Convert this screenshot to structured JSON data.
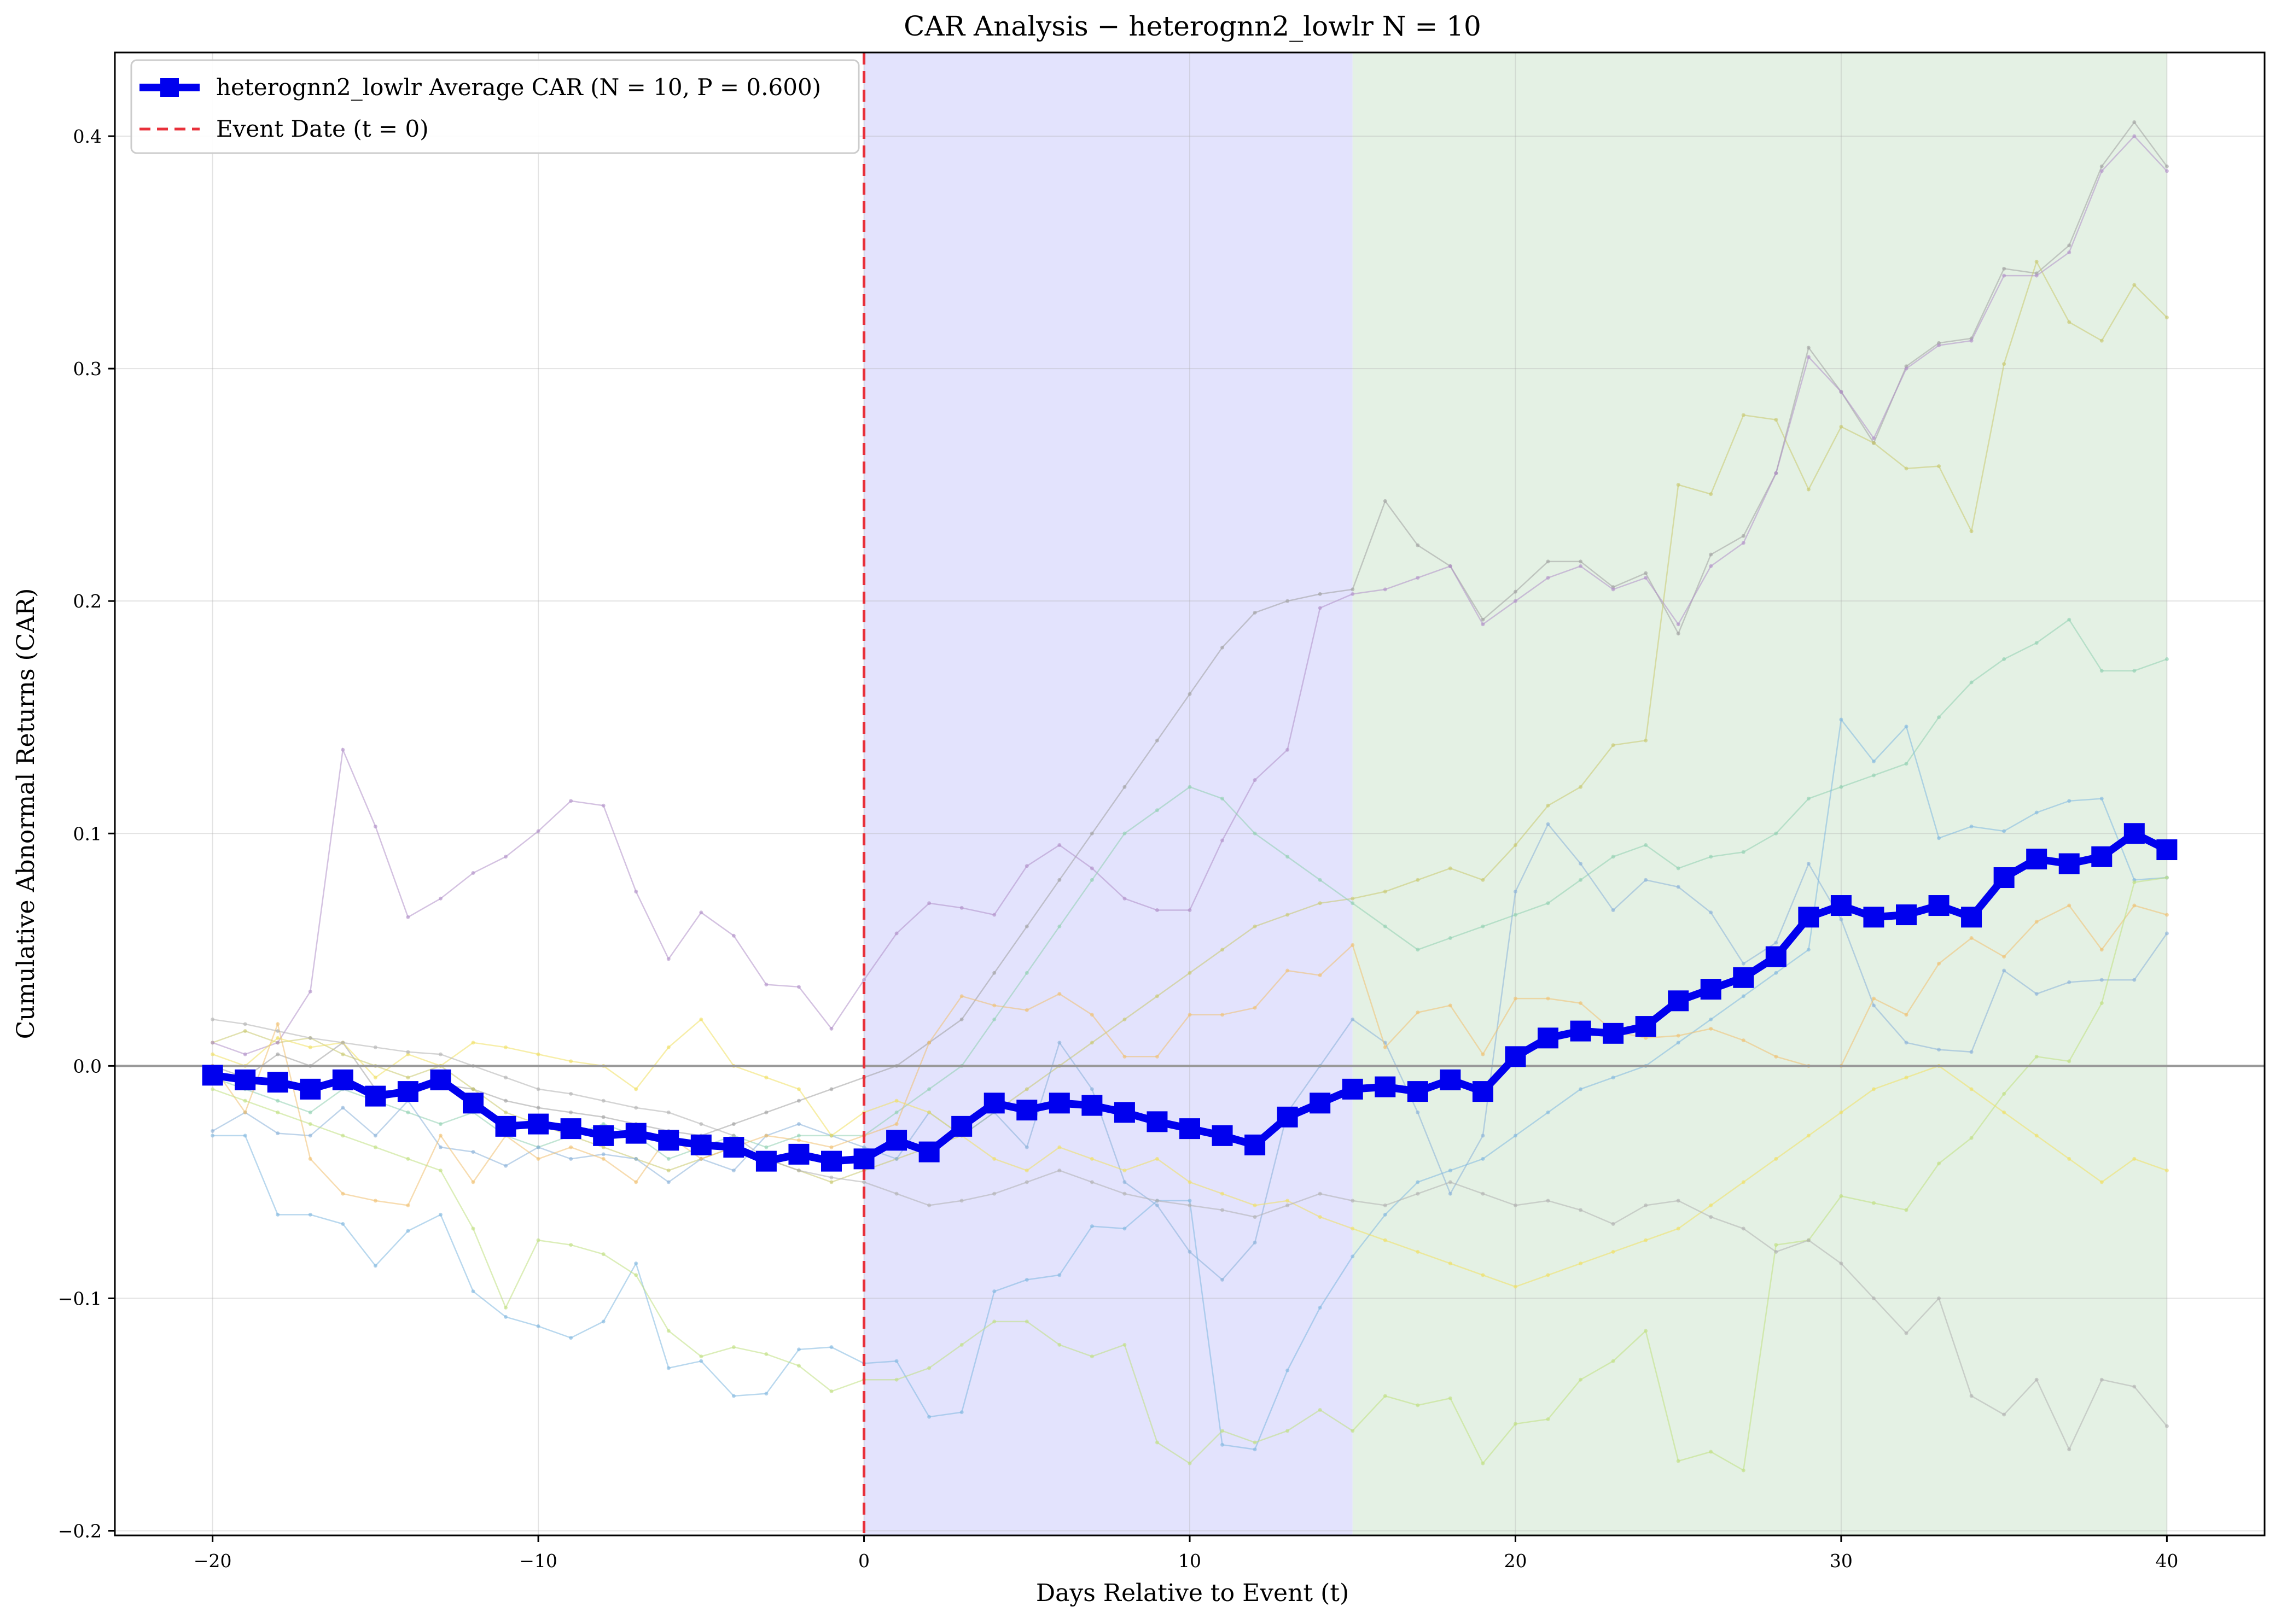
{
  "chart_data": {
    "type": "line",
    "title": "CAR Analysis − heterognn2_lowlr    N = 10",
    "xlabel": "Days Relative to Event (t)",
    "ylabel": "Cumulative Abnormal Returns (CAR)",
    "xlim": [
      -23,
      43
    ],
    "ylim": [
      -0.202,
      0.436
    ],
    "xticks": [
      -20,
      -10,
      0,
      10,
      20,
      30,
      40
    ],
    "xtick_labels": [
      "−20",
      "−10",
      "0",
      "10",
      "20",
      "30",
      "40"
    ],
    "yticks": [
      -0.2,
      -0.1,
      0.0,
      0.1,
      0.2,
      0.3,
      0.4
    ],
    "ytick_labels": [
      "−0.2",
      "−0.1",
      "0.0",
      "0.1",
      "0.2",
      "0.3",
      "0.4"
    ],
    "grid": true,
    "legend_position": "top-left",
    "shaded_regions": [
      {
        "x_start": 0,
        "x_end": 15,
        "color": "#e3e3fd"
      },
      {
        "x_start": 15,
        "x_end": 40,
        "color": "#e4f1e4"
      }
    ],
    "event_line": {
      "x": 0,
      "color": "#e8303a",
      "label": "Event Date    (t = 0)"
    },
    "zero_line": {
      "y": 0.0,
      "color": "#999999"
    },
    "colors": {
      "average": "#0000ee",
      "event": "#e8303a"
    },
    "x": [
      -20,
      -19,
      -18,
      -17,
      -16,
      -15,
      -14,
      -13,
      -12,
      -11,
      -10,
      -9,
      -8,
      -7,
      -6,
      -5,
      -4,
      -3,
      -2,
      -1,
      0,
      1,
      2,
      3,
      4,
      5,
      6,
      7,
      8,
      9,
      10,
      11,
      12,
      13,
      14,
      15,
      16,
      17,
      18,
      19,
      20,
      21,
      22,
      23,
      24,
      25,
      26,
      27,
      28,
      29,
      30,
      31,
      32,
      33,
      34,
      35,
      36,
      37,
      38,
      39,
      40
    ],
    "average_series": {
      "name": "heterognn2_lowlr Average CAR    (N = 10, P = 0.600)",
      "color": "#0000ee",
      "values": [
        -0.004,
        -0.006,
        -0.007,
        -0.01,
        -0.006,
        -0.013,
        -0.011,
        -0.006,
        -0.016,
        -0.026,
        -0.025,
        -0.027,
        -0.03,
        -0.029,
        -0.032,
        -0.034,
        -0.035,
        -0.041,
        -0.038,
        -0.041,
        -0.04,
        -0.032,
        -0.037,
        -0.026,
        -0.016,
        -0.019,
        -0.016,
        -0.017,
        -0.02,
        -0.024,
        -0.027,
        -0.03,
        -0.034,
        -0.022,
        -0.016,
        -0.01,
        -0.009,
        -0.011,
        -0.006,
        -0.011,
        0.004,
        0.012,
        0.015,
        0.014,
        0.017,
        0.028,
        0.033,
        0.038,
        0.047,
        0.064,
        0.069,
        0.064,
        0.065,
        0.069,
        0.064,
        0.081,
        0.089,
        0.087,
        0.09,
        0.1,
        0.093
      ]
    },
    "stock_series": [
      {
        "color": "#a0a0a0",
        "values": [
          0.0,
          -0.005,
          0.005,
          0.0,
          0.01,
          -0.01,
          -0.012,
          -0.008,
          -0.01,
          -0.015,
          -0.018,
          -0.02,
          -0.022,
          -0.025,
          -0.028,
          -0.03,
          -0.025,
          -0.02,
          -0.015,
          -0.01,
          -0.005,
          0.0,
          0.01,
          0.02,
          0.04,
          0.06,
          0.08,
          0.1,
          0.12,
          0.14,
          0.16,
          0.18,
          0.195,
          0.2,
          0.203,
          0.205,
          0.243,
          0.224,
          0.215,
          0.192,
          0.204,
          0.217,
          0.217,
          0.206,
          0.212,
          0.186,
          0.22,
          0.228,
          0.255,
          0.309,
          0.29,
          0.268,
          0.301,
          0.311,
          0.313,
          0.343,
          0.341,
          0.353,
          0.387,
          0.406,
          0.387
        ]
      },
      {
        "color": "#c8c86e",
        "values": [
          0.01,
          0.015,
          0.01,
          0.012,
          0.005,
          0.0,
          -0.005,
          0.0,
          -0.01,
          -0.02,
          -0.025,
          -0.03,
          -0.035,
          -0.04,
          -0.045,
          -0.04,
          -0.035,
          -0.04,
          -0.045,
          -0.05,
          -0.045,
          -0.04,
          -0.035,
          -0.03,
          -0.02,
          -0.01,
          0.0,
          0.01,
          0.02,
          0.03,
          0.04,
          0.05,
          0.06,
          0.065,
          0.07,
          0.072,
          0.075,
          0.08,
          0.085,
          0.08,
          0.095,
          0.112,
          0.12,
          0.138,
          0.14,
          0.25,
          0.246,
          0.28,
          0.278,
          0.248,
          0.275,
          0.268,
          0.257,
          0.258,
          0.23,
          0.302,
          0.346,
          0.32,
          0.312,
          0.336,
          0.322
        ]
      },
      {
        "color": "#b090c8",
        "values": [
          0.01,
          0.005,
          0.01,
          0.032,
          0.136,
          0.103,
          0.064,
          0.072,
          0.083,
          0.09,
          0.101,
          0.114,
          0.112,
          0.075,
          0.046,
          0.066,
          0.056,
          0.035,
          0.034,
          0.016,
          0.037,
          0.057,
          0.07,
          0.068,
          0.065,
          0.086,
          0.095,
          0.085,
          0.072,
          0.067,
          0.067,
          0.097,
          0.123,
          0.136,
          0.197,
          0.203,
          0.205,
          0.21,
          0.215,
          0.19,
          0.2,
          0.21,
          0.215,
          0.205,
          0.21,
          0.19,
          0.215,
          0.225,
          0.255,
          0.305,
          0.29,
          0.27,
          0.3,
          0.31,
          0.312,
          0.34,
          0.34,
          0.35,
          0.385,
          0.4,
          0.385
        ]
      },
      {
        "color": "#90d0b0",
        "values": [
          -0.005,
          -0.01,
          -0.015,
          -0.02,
          -0.01,
          -0.015,
          -0.02,
          -0.025,
          -0.02,
          -0.03,
          -0.035,
          -0.03,
          -0.025,
          -0.03,
          -0.04,
          -0.035,
          -0.03,
          -0.035,
          -0.03,
          -0.03,
          -0.03,
          -0.02,
          -0.01,
          0.0,
          0.02,
          0.04,
          0.06,
          0.08,
          0.1,
          0.11,
          0.12,
          0.115,
          0.1,
          0.09,
          0.08,
          0.07,
          0.06,
          0.05,
          0.055,
          0.06,
          0.065,
          0.07,
          0.08,
          0.09,
          0.095,
          0.085,
          0.09,
          0.092,
          0.1,
          0.115,
          0.12,
          0.125,
          0.13,
          0.15,
          0.165,
          0.175,
          0.182,
          0.192,
          0.17,
          0.17,
          0.175
        ]
      },
      {
        "color": "#88b0d8",
        "values": [
          -0.028,
          -0.02,
          -0.029,
          -0.03,
          -0.018,
          -0.03,
          -0.015,
          -0.035,
          -0.037,
          -0.043,
          -0.035,
          -0.04,
          -0.038,
          -0.04,
          -0.05,
          -0.04,
          -0.045,
          -0.03,
          -0.025,
          -0.03,
          -0.035,
          -0.04,
          -0.02,
          -0.03,
          -0.02,
          -0.035,
          0.01,
          -0.01,
          -0.05,
          -0.06,
          -0.08,
          -0.092,
          -0.076,
          -0.02,
          0.0,
          0.02,
          0.01,
          -0.02,
          -0.055,
          -0.03,
          0.075,
          0.104,
          0.087,
          0.067,
          0.08,
          0.077,
          0.066,
          0.044,
          0.053,
          0.087,
          0.063,
          0.026,
          0.01,
          0.007,
          0.006,
          0.041,
          0.031,
          0.036,
          0.037,
          0.037,
          0.057
        ]
      },
      {
        "color": "#80b8e0",
        "values": [
          -0.03,
          -0.03,
          -0.064,
          -0.064,
          -0.068,
          -0.086,
          -0.071,
          -0.064,
          -0.097,
          -0.108,
          -0.112,
          -0.117,
          -0.11,
          -0.085,
          -0.13,
          -0.127,
          -0.142,
          -0.141,
          -0.122,
          -0.121,
          -0.128,
          -0.127,
          -0.151,
          -0.149,
          -0.097,
          -0.092,
          -0.09,
          -0.069,
          -0.07,
          -0.058,
          -0.058,
          -0.163,
          -0.165,
          -0.131,
          -0.104,
          -0.082,
          -0.064,
          -0.05,
          -0.045,
          -0.04,
          -0.03,
          -0.02,
          -0.01,
          -0.005,
          0.0,
          0.01,
          0.02,
          0.03,
          0.04,
          0.05,
          0.149,
          0.131,
          0.146,
          0.098,
          0.103,
          0.101,
          0.109,
          0.114,
          0.115,
          0.08,
          0.081
        ]
      },
      {
        "color": "#f0c070",
        "values": [
          0.0,
          -0.02,
          0.018,
          -0.04,
          -0.055,
          -0.058,
          -0.06,
          -0.03,
          -0.05,
          -0.03,
          -0.04,
          -0.035,
          -0.04,
          -0.05,
          -0.03,
          -0.04,
          -0.035,
          -0.03,
          -0.032,
          -0.035,
          -0.03,
          -0.025,
          0.01,
          0.03,
          0.026,
          0.024,
          0.031,
          0.022,
          0.004,
          0.004,
          0.022,
          0.022,
          0.025,
          0.041,
          0.039,
          0.052,
          0.008,
          0.023,
          0.026,
          0.005,
          0.029,
          0.029,
          0.027,
          0.015,
          0.012,
          0.013,
          0.016,
          0.011,
          0.004,
          0.0,
          0.0,
          0.029,
          0.022,
          0.044,
          0.055,
          0.047,
          0.062,
          0.069,
          0.05,
          0.069,
          0.065
        ]
      },
      {
        "color": "#c0e080",
        "values": [
          -0.01,
          -0.015,
          -0.02,
          -0.025,
          -0.03,
          -0.035,
          -0.04,
          -0.045,
          -0.07,
          -0.104,
          -0.075,
          -0.077,
          -0.081,
          -0.09,
          -0.114,
          -0.125,
          -0.121,
          -0.124,
          -0.129,
          -0.14,
          -0.135,
          -0.135,
          -0.13,
          -0.12,
          -0.11,
          -0.11,
          -0.12,
          -0.125,
          -0.12,
          -0.162,
          -0.171,
          -0.157,
          -0.162,
          -0.157,
          -0.148,
          -0.157,
          -0.142,
          -0.146,
          -0.143,
          -0.171,
          -0.154,
          -0.152,
          -0.135,
          -0.127,
          -0.114,
          -0.17,
          -0.166,
          -0.174,
          -0.077,
          -0.075,
          -0.056,
          -0.059,
          -0.062,
          -0.042,
          -0.031,
          -0.012,
          0.004,
          0.002,
          0.027,
          0.079,
          0.081
        ]
      },
      {
        "color": "#f0e060",
        "values": [
          0.005,
          0.0,
          0.012,
          0.008,
          0.01,
          -0.005,
          0.005,
          0.0,
          0.01,
          0.008,
          0.005,
          0.002,
          0.0,
          -0.01,
          0.008,
          0.02,
          0.0,
          -0.005,
          -0.01,
          -0.03,
          -0.02,
          -0.015,
          -0.02,
          -0.03,
          -0.04,
          -0.045,
          -0.035,
          -0.04,
          -0.045,
          -0.04,
          -0.05,
          -0.055,
          -0.06,
          -0.058,
          -0.065,
          -0.07,
          -0.075,
          -0.08,
          -0.085,
          -0.09,
          -0.095,
          -0.09,
          -0.085,
          -0.08,
          -0.075,
          -0.07,
          -0.06,
          -0.05,
          -0.04,
          -0.03,
          -0.02,
          -0.01,
          -0.005,
          0.0,
          -0.01,
          -0.02,
          -0.03,
          -0.04,
          -0.05,
          -0.04,
          -0.045
        ]
      },
      {
        "color": "#b0b0b0",
        "values": [
          0.02,
          0.018,
          0.015,
          0.012,
          0.01,
          0.008,
          0.006,
          0.005,
          0.0,
          -0.005,
          -0.01,
          -0.012,
          -0.015,
          -0.018,
          -0.02,
          -0.025,
          -0.03,
          -0.04,
          -0.045,
          -0.048,
          -0.05,
          -0.055,
          -0.06,
          -0.058,
          -0.055,
          -0.05,
          -0.045,
          -0.05,
          -0.055,
          -0.058,
          -0.06,
          -0.062,
          -0.065,
          -0.06,
          -0.055,
          -0.058,
          -0.06,
          -0.055,
          -0.05,
          -0.055,
          -0.06,
          -0.058,
          -0.062,
          -0.068,
          -0.06,
          -0.058,
          -0.065,
          -0.07,
          -0.08,
          -0.075,
          -0.085,
          -0.1,
          -0.115,
          -0.1,
          -0.142,
          -0.15,
          -0.135,
          -0.165,
          -0.135,
          -0.138,
          -0.155
        ]
      }
    ]
  }
}
